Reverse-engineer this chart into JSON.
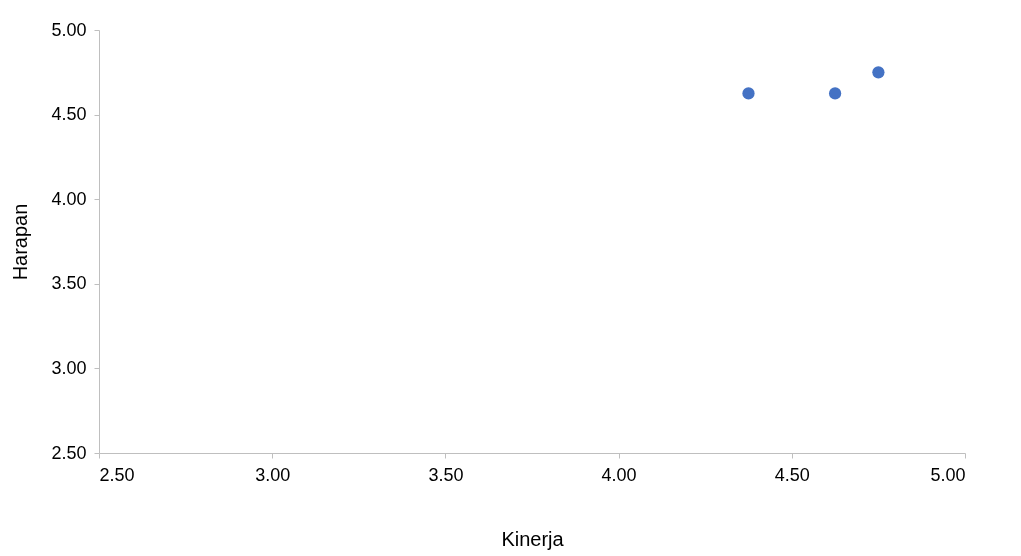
{
  "chart_data": {
    "type": "scatter",
    "xlabel": "Kinerja",
    "ylabel": "Harapan",
    "x": [
      4.375,
      4.625,
      4.75
    ],
    "series": [
      {
        "color": "#4472c4",
        "values": [
          4.625,
          4.625,
          4.75
        ]
      }
    ],
    "xlim": [
      2.5,
      5.0
    ],
    "ylim": [
      2.5,
      5.0
    ],
    "xticks": [
      {
        "value": 2.5,
        "label": "2.50"
      },
      {
        "value": 3.0,
        "label": "3.00"
      },
      {
        "value": 3.5,
        "label": "3.50"
      },
      {
        "value": 4.0,
        "label": "4.00"
      },
      {
        "value": 4.5,
        "label": "4.50"
      },
      {
        "value": 5.0,
        "label": "5.00"
      }
    ],
    "yticks": [
      {
        "value": 2.5,
        "label": "2.50"
      },
      {
        "value": 3.0,
        "label": "3.00"
      },
      {
        "value": 3.5,
        "label": "3.50"
      },
      {
        "value": 4.0,
        "label": "4.00"
      },
      {
        "value": 4.5,
        "label": "4.50"
      },
      {
        "value": 5.0,
        "label": "5.00"
      }
    ],
    "grid": false,
    "legend": false,
    "marker": "circle"
  }
}
